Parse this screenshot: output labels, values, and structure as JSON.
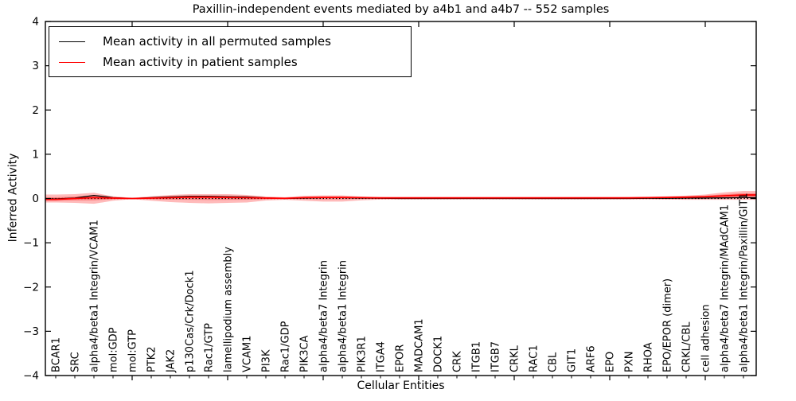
{
  "chart_data": {
    "type": "line",
    "title": "Paxillin-independent events mediated by a4b1 and a4b7 -- 552 samples",
    "xlabel": "Cellular Entities",
    "ylabel": "Inferred Activity",
    "ylim": [
      -4,
      4
    ],
    "yticks": [
      4,
      3,
      2,
      1,
      0,
      -1,
      -2,
      -3,
      -4
    ],
    "x_major_tick_indices": [
      4,
      9,
      14,
      19,
      24,
      29,
      34
    ],
    "grid": false,
    "legend_position": "upper left",
    "zero_line": {
      "style": "dotted",
      "color": "#000000",
      "y": 0
    },
    "categories": [
      "BCAR1",
      "SRC",
      "alpha4/beta1 Integrin/VCAM1",
      "mol:GDP",
      "mol:GTP",
      "PTK2",
      "JAK2",
      "p130Cas/Crk/Dock1",
      "Rac1/GTP",
      "lamellipodium assembly",
      "VCAM1",
      "PI3K",
      "Rac1/GDP",
      "PIK3CA",
      "alpha4/beta7 Integrin",
      "alpha4/beta1 Integrin",
      "PIK3R1",
      "ITGA4",
      "EPOR",
      "MADCAM1",
      "DOCK1",
      "CRK",
      "ITGB1",
      "ITGB7",
      "CRKL",
      "RAC1",
      "CBL",
      "GIT1",
      "ARF6",
      "EPO",
      "PXN",
      "RHOA",
      "EPO/EPOR (dimer)",
      "CRKL/CBL",
      "cell adhesion",
      "alpha4/beta7 Integrin/MAdCAM1",
      "alpha4/beta1 Integrin/Paxillin/GIT1"
    ],
    "series": [
      {
        "name": "Mean activity in all permuted samples",
        "color": "#000000",
        "values": [
          -0.01,
          0.01,
          0.07,
          0.02,
          0.0,
          0.02,
          0.035,
          0.05,
          0.05,
          0.04,
          0.035,
          0.015,
          0.0,
          0.01,
          0.02,
          0.02,
          0.01,
          0.005,
          0.0,
          0.0,
          0.0,
          0.0,
          0.0,
          0.0,
          0.0,
          0.0,
          0.0,
          0.0,
          0.0,
          0.0,
          0.0,
          0.005,
          0.005,
          0.01,
          0.01,
          0.015,
          0.02
        ]
      },
      {
        "name": "Mean activity in patient samples",
        "color": "#ff0000",
        "values": [
          -0.02,
          0.0,
          0.02,
          0.01,
          0.0,
          0.01,
          0.02,
          0.03,
          0.03,
          0.025,
          0.02,
          0.01,
          0.005,
          0.02,
          0.025,
          0.025,
          0.02,
          0.015,
          0.015,
          0.015,
          0.015,
          0.015,
          0.015,
          0.015,
          0.015,
          0.015,
          0.015,
          0.015,
          0.015,
          0.015,
          0.015,
          0.02,
          0.025,
          0.03,
          0.04,
          0.06,
          0.08
        ],
        "band_upper": [
          0.09,
          0.1,
          0.13,
          0.05,
          0.015,
          0.05,
          0.08,
          0.1,
          0.1,
          0.1,
          0.08,
          0.045,
          0.03,
          0.06,
          0.07,
          0.07,
          0.045,
          0.03,
          0.025,
          0.025,
          0.025,
          0.025,
          0.025,
          0.025,
          0.025,
          0.025,
          0.025,
          0.025,
          0.025,
          0.025,
          0.03,
          0.035,
          0.05,
          0.065,
          0.09,
          0.14,
          0.17
        ],
        "band_lower": [
          -0.09,
          -0.1,
          -0.12,
          -0.05,
          -0.015,
          -0.05,
          -0.08,
          -0.1,
          -0.11,
          -0.1,
          -0.09,
          -0.045,
          -0.03,
          -0.05,
          -0.07,
          -0.07,
          -0.04,
          -0.025,
          -0.02,
          -0.02,
          -0.02,
          -0.02,
          -0.02,
          -0.02,
          -0.02,
          -0.02,
          -0.02,
          -0.02,
          -0.02,
          -0.02,
          -0.02,
          -0.02,
          -0.025,
          -0.03,
          -0.03,
          -0.03,
          -0.03
        ],
        "band_color": "#ff0000",
        "band_alpha": 0.27
      }
    ]
  }
}
